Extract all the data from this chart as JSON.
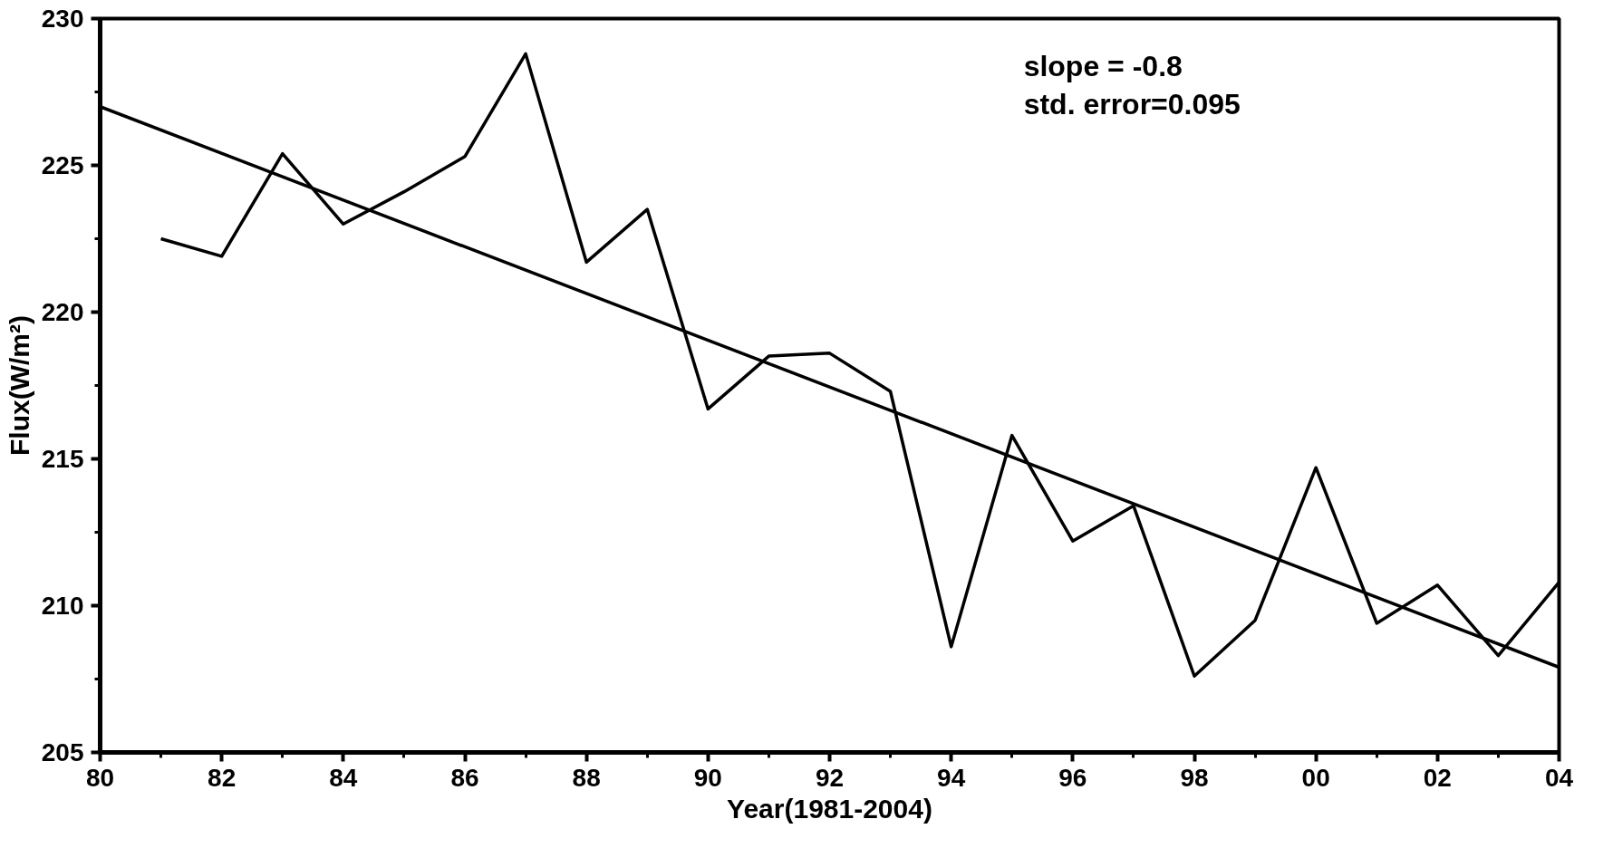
{
  "chart_data": {
    "type": "line",
    "xlabel": "Year(1981-2004)",
    "ylabel": "Flux(W/m²)",
    "annotations": [
      "slope = -0.8",
      "std. error=0.095"
    ],
    "x": [
      1981,
      1982,
      1983,
      1984,
      1985,
      1986,
      1987,
      1988,
      1989,
      1990,
      1991,
      1992,
      1993,
      1994,
      1995,
      1996,
      1997,
      1998,
      1999,
      2000,
      2001,
      2002,
      2003,
      2004
    ],
    "series": [
      {
        "color": "#000000",
        "values": [
          222.5,
          221.9,
          225.4,
          223.0,
          224.1,
          225.3,
          228.8,
          221.7,
          223.5,
          216.7,
          218.5,
          218.6,
          217.3,
          208.6,
          215.8,
          212.2,
          213.4,
          207.6,
          209.5,
          214.7,
          209.4,
          210.7,
          208.3,
          210.8
        ]
      },
      {
        "type": "line",
        "color": "#000000",
        "x": [
          1980,
          2004
        ],
        "values": [
          227.0,
          207.9
        ]
      }
    ],
    "xlim": [
      1980,
      2004
    ],
    "xticks": [
      {
        "value": 1980,
        "label": "80"
      },
      {
        "value": 1981,
        "label": null
      },
      {
        "value": 1982,
        "label": "82"
      },
      {
        "value": 1983,
        "label": null
      },
      {
        "value": 1984,
        "label": "84"
      },
      {
        "value": 1985,
        "label": null
      },
      {
        "value": 1986,
        "label": "86"
      },
      {
        "value": 1987,
        "label": null
      },
      {
        "value": 1988,
        "label": "88"
      },
      {
        "value": 1989,
        "label": null
      },
      {
        "value": 1990,
        "label": "90"
      },
      {
        "value": 1991,
        "label": null
      },
      {
        "value": 1992,
        "label": "92"
      },
      {
        "value": 1993,
        "label": null
      },
      {
        "value": 1994,
        "label": "94"
      },
      {
        "value": 1995,
        "label": null
      },
      {
        "value": 1996,
        "label": "96"
      },
      {
        "value": 1997,
        "label": null
      },
      {
        "value": 1998,
        "label": "98"
      },
      {
        "value": 1999,
        "label": null
      },
      {
        "value": 2000,
        "label": "00"
      },
      {
        "value": 2001,
        "label": null
      },
      {
        "value": 2002,
        "label": "02"
      },
      {
        "value": 2003,
        "label": null
      },
      {
        "value": 2004,
        "label": "04"
      }
    ],
    "ylim": [
      205,
      230
    ],
    "yticks": [
      205,
      {
        "value": 207.5,
        "label": null
      },
      210,
      {
        "value": 212.5,
        "label": null
      },
      215,
      {
        "value": 217.5,
        "label": null
      },
      220,
      {
        "value": 222.5,
        "label": null
      },
      225,
      {
        "value": 227.5,
        "label": null
      },
      230
    ],
    "grid": false,
    "marker": "none",
    "line_style": "solid"
  }
}
